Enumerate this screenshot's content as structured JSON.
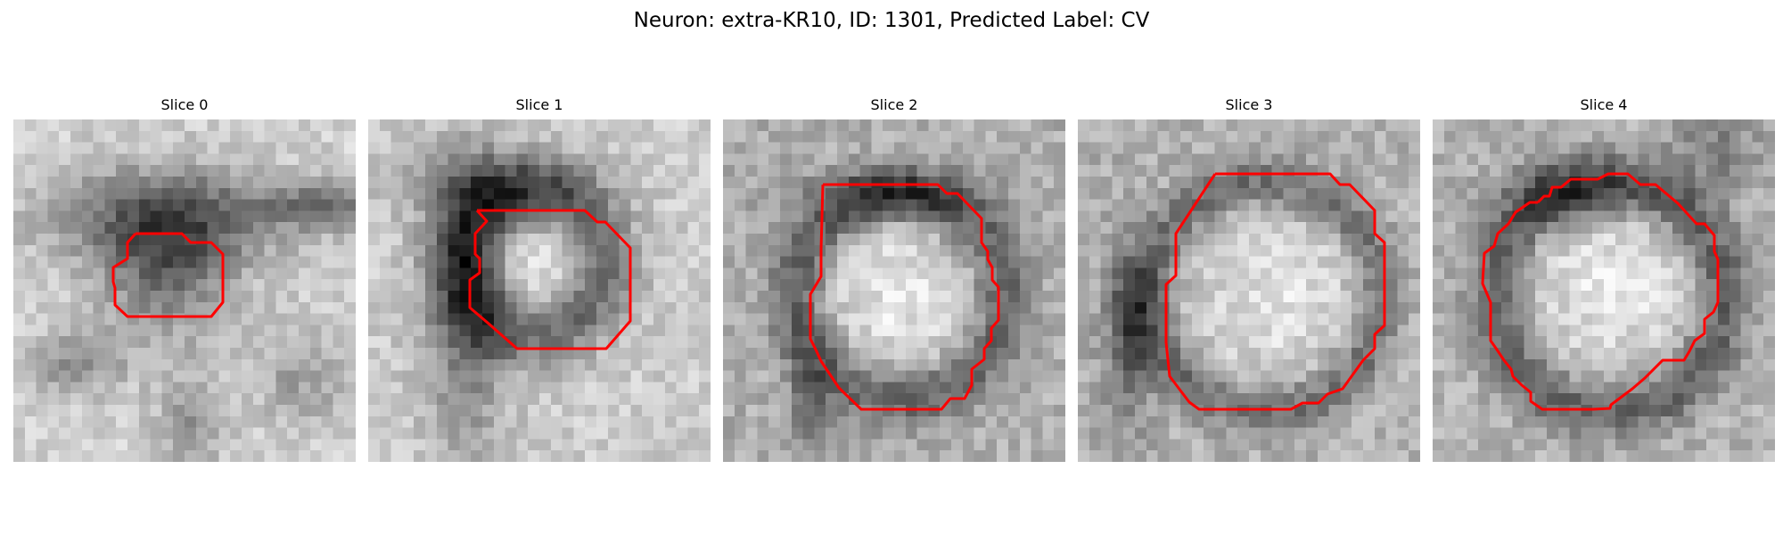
{
  "figure": {
    "title": "Neuron: extra-KR10, ID: 1301, Predicted Label: CV"
  },
  "panels": [
    {
      "title": "Slice 0"
    },
    {
      "title": "Slice 1"
    },
    {
      "title": "Slice 2"
    },
    {
      "title": "Slice 3"
    },
    {
      "title": "Slice 4"
    }
  ],
  "colors": {
    "contour": "#ff0000",
    "colormap": "gray"
  }
}
